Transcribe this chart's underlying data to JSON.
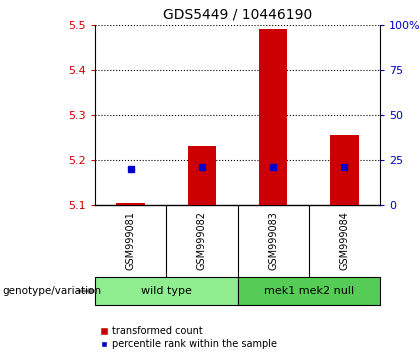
{
  "title": "GDS5449 / 10446190",
  "samples": [
    "GSM999081",
    "GSM999082",
    "GSM999083",
    "GSM999084"
  ],
  "transformed_counts": [
    5.105,
    5.23,
    5.49,
    5.255
  ],
  "percentile_ranks": [
    20,
    21,
    21,
    21
  ],
  "ylim_left": [
    5.1,
    5.5
  ],
  "ylim_right": [
    0,
    100
  ],
  "yticks_left": [
    5.1,
    5.2,
    5.3,
    5.4,
    5.5
  ],
  "yticks_right": [
    0,
    25,
    50,
    75,
    100
  ],
  "ytick_labels_right": [
    "0",
    "25",
    "50",
    "75",
    "100%"
  ],
  "bar_color": "#cc0000",
  "dot_color": "#0000cc",
  "bar_width": 0.4,
  "groups": [
    {
      "label": "wild type",
      "samples_idx": [
        0,
        1
      ],
      "color": "#90ee90"
    },
    {
      "label": "mek1 mek2 null",
      "samples_idx": [
        2,
        3
      ],
      "color": "#55cc55"
    }
  ],
  "group_label": "genotype/variation",
  "legend_bar": "transformed count",
  "legend_dot": "percentile rank within the sample",
  "background_plot": "#ffffff",
  "background_xlabel": "#c8c8c8",
  "title_fontsize": 10,
  "left_tick_color": "#cc0000",
  "right_tick_color": "#0000cc",
  "tick_fontsize": 8,
  "sample_fontsize": 7,
  "group_fontsize": 8,
  "legend_fontsize": 7
}
